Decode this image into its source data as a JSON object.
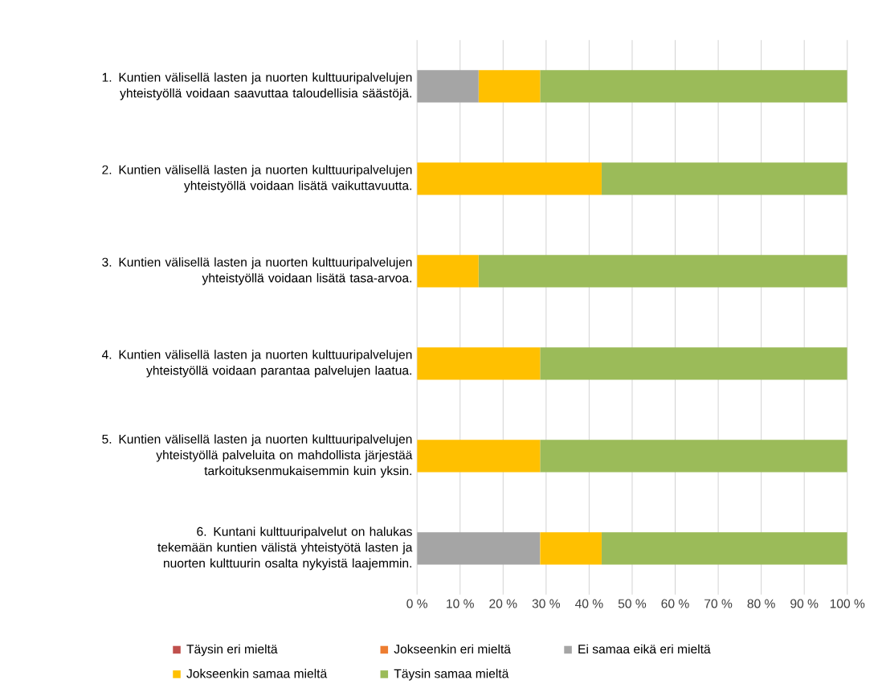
{
  "chart_data": {
    "type": "bar",
    "orientation": "horizontal",
    "stacked": true,
    "categories": [
      "1. Kuntien välisellä lasten ja nuorten kulttuuripalvelujen yhteistyöllä voidaan saavuttaa taloudellisia säästöjä.",
      "2. Kuntien välisellä lasten ja nuorten kulttuuripalvelujen yhteistyöllä voidaan lisätä vaikuttavuutta.",
      "3. Kuntien välisellä lasten ja nuorten kulttuuripalvelujen yhteistyöllä voidaan lisätä tasa-arvoa.",
      "4. Kuntien välisellä lasten ja nuorten kulttuuripalvelujen yhteistyöllä voidaan parantaa palvelujen laatua.",
      "5. Kuntien välisellä lasten ja nuorten kulttuuripalvelujen yhteistyöllä palveluita on mahdollista järjestää tarkoituksenmukaisemmin kuin yksin.",
      "6. Kuntani kulttuuripalvelut on halukas tekemään kuntien välistä yhteistyötä lasten ja nuorten kulttuurin osalta nykyistä laajemmin."
    ],
    "series": [
      {
        "name": "Täysin eri mieltä",
        "color": "#c0504d",
        "values": [
          0,
          0,
          0,
          0,
          0,
          0
        ]
      },
      {
        "name": "Jokseenkin eri mieltä",
        "color": "#ed7d31",
        "values": [
          0,
          0,
          0,
          0,
          0,
          0
        ]
      },
      {
        "name": "Ei samaa eikä eri mieltä",
        "color": "#a5a5a5",
        "values": [
          14.3,
          0,
          0,
          0,
          0,
          28.6
        ]
      },
      {
        "name": "Jokseenkin samaa mieltä",
        "color": "#ffc000",
        "values": [
          14.3,
          42.9,
          14.3,
          28.6,
          28.6,
          14.3
        ]
      },
      {
        "name": "Täysin samaa mieltä",
        "color": "#9bbb59",
        "values": [
          71.4,
          57.1,
          85.7,
          71.4,
          71.4,
          57.1
        ]
      }
    ],
    "xlim": [
      0,
      100
    ],
    "xticks": [
      {
        "value": 0,
        "label": "0 %"
      },
      {
        "value": 10,
        "label": "10 %"
      },
      {
        "value": 20,
        "label": "20 %"
      },
      {
        "value": 30,
        "label": "30 %"
      },
      {
        "value": 40,
        "label": "40 %"
      },
      {
        "value": 50,
        "label": "50 %"
      },
      {
        "value": 60,
        "label": "60 %"
      },
      {
        "value": 70,
        "label": "70 %"
      },
      {
        "value": 80,
        "label": "80 %"
      },
      {
        "value": 90,
        "label": "90 %"
      },
      {
        "value": 100,
        "label": "100 %"
      }
    ],
    "grid": "x",
    "legend": "bottom"
  }
}
